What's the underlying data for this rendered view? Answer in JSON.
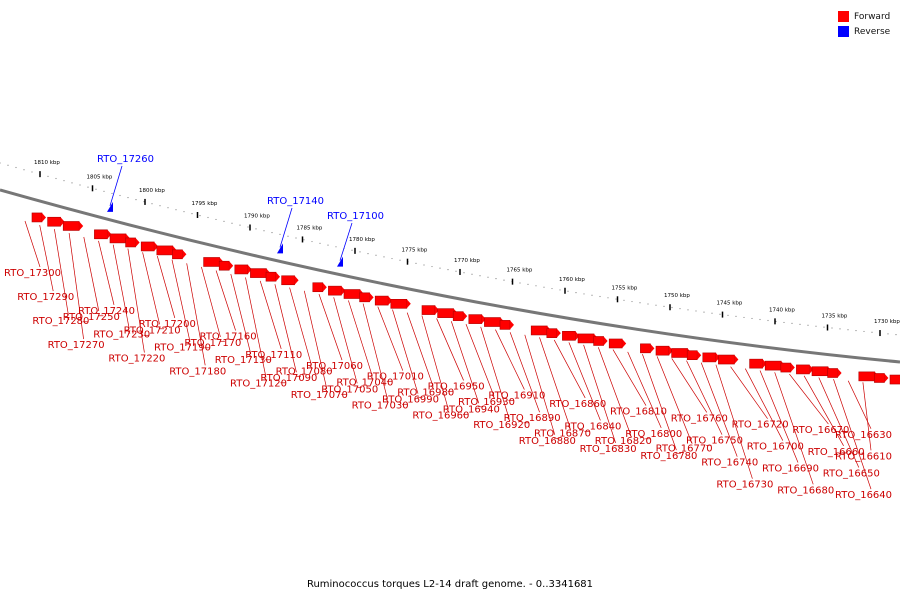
{
  "legend": {
    "forward_label": "Forward",
    "reverse_label": "Reverse",
    "forward_color": "#ff0000",
    "reverse_color": "#0000ff"
  },
  "caption": "Ruminococcus torques L2-14 draft genome. - 0..3341681",
  "scale": [
    "1810 kbp",
    "1805 kbp",
    "1800 kbp",
    "1795 kbp",
    "1790 kbp",
    "1785 kbp",
    "1780 kbp",
    "1775 kbp",
    "1770 kbp",
    "1765 kbp",
    "1760 kbp",
    "1755 kbp",
    "1750 kbp",
    "1745 kbp",
    "1740 kbp",
    "1735 kbp",
    "1730 kbp"
  ],
  "reverse_genes": [
    "RTO_17260",
    "RTO_17140",
    "RTO_17100"
  ],
  "forward_genes": [
    "RTO_17300",
    "RTO_17290",
    "RTO_17280",
    "RTO_17270",
    "RTO_17250",
    "RTO_17240",
    "RTO_17230",
    "RTO_17220",
    "RTO_17210",
    "RTO_17200",
    "RTO_17190",
    "RTO_17180",
    "RTO_17170",
    "RTO_17160",
    "RTO_17130",
    "RTO_17120",
    "RTO_17110",
    "RTO_17090",
    "RTO_17080",
    "RTO_17070",
    "RTO_17060",
    "RTO_17050",
    "RTO_17040",
    "RTO_17030",
    "RTO_17010",
    "RTO_16990",
    "RTO_16980",
    "RTO_16960",
    "RTO_16950",
    "RTO_16940",
    "RTO_16930",
    "RTO_16920",
    "RTO_16910",
    "RTO_16890",
    "RTO_16880",
    "RTO_16870",
    "RTO_16860",
    "RTO_16840",
    "RTO_16830",
    "RTO_16820",
    "RTO_16810",
    "RTO_16800",
    "RTO_16780",
    "RTO_16770",
    "RTO_16760",
    "RTO_16750",
    "RTO_16740",
    "RTO_16730",
    "RTO_16720",
    "RTO_16700",
    "RTO_16690",
    "RTO_16680",
    "RTO_16670",
    "RTO_16660",
    "RTO_16650",
    "RTO_16640",
    "RTO_16630",
    "RTO_16610"
  ]
}
